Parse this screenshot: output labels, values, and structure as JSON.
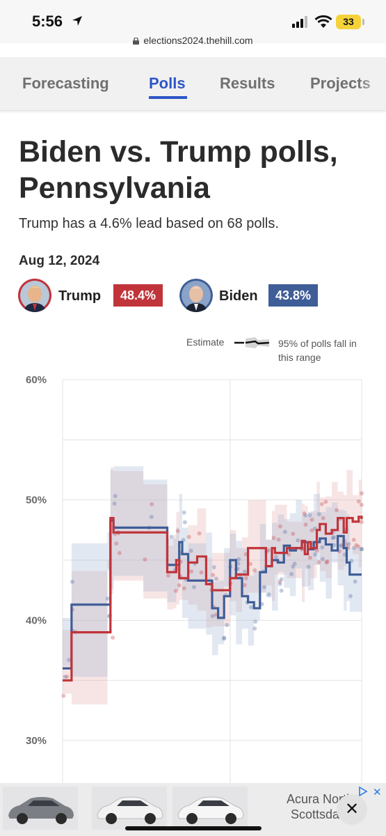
{
  "status_bar": {
    "time": "5:56",
    "battery": "33",
    "url": "elections2024.thehill.com",
    "icons": [
      "location-arrow-icon",
      "signal-icon",
      "wifi-icon",
      "battery-icon",
      "lock-icon"
    ]
  },
  "nav": {
    "tabs": [
      {
        "label": "Forecasting",
        "active": false
      },
      {
        "label": "Polls",
        "active": true
      },
      {
        "label": "Results",
        "active": false
      },
      {
        "label": "Projects",
        "active": false
      }
    ],
    "accent_color": "#2d55c7"
  },
  "page": {
    "title": "Biden vs. Trump polls, Pennsylvania",
    "subtitle": "Trump has a 4.6% lead based on 68 polls.",
    "date": "Aug 12, 2024"
  },
  "candidates": [
    {
      "name": "Trump",
      "value": "48.4%",
      "color": "#c0343a"
    },
    {
      "name": "Biden",
      "value": "43.8%",
      "color": "#3f5d96"
    }
  ],
  "legend": {
    "estimate": "Estimate",
    "range": "95% of polls fall in this range"
  },
  "chart_data": {
    "type": "line",
    "y_ticks": [
      "60%",
      "50%",
      "40%",
      "30%"
    ],
    "ylim": [
      30,
      60
    ],
    "x_label": "",
    "series": [
      {
        "name": "Trump",
        "color": "#c0343a",
        "x": [
          0,
          3,
          15,
          16,
          17,
          27,
          35,
          37,
          38,
          39,
          42,
          45,
          48,
          50,
          56,
          58,
          60,
          62,
          68,
          70,
          71,
          75,
          80,
          81,
          82,
          83,
          85,
          86,
          88,
          90,
          92,
          94,
          95,
          97,
          99,
          100
        ],
        "values": [
          35.0,
          39.0,
          39.0,
          48.5,
          47.3,
          47.3,
          44.0,
          44.0,
          45.0,
          43.5,
          44.8,
          45.3,
          43.0,
          42.5,
          43.5,
          43.8,
          43.8,
          46.0,
          44.5,
          46.0,
          45.6,
          46.0,
          46.6,
          45.5,
          46.5,
          46.0,
          47.5,
          48.0,
          47.2,
          47.5,
          48.5,
          47.3,
          48.5,
          48.2,
          48.6,
          48.4
        ]
      },
      {
        "name": "Biden",
        "color": "#3f5d96",
        "x": [
          0,
          3,
          15,
          16,
          17,
          27,
          35,
          38,
          39,
          40,
          42,
          48,
          50,
          52,
          54,
          56,
          58,
          60,
          62,
          64,
          66,
          68,
          70,
          72,
          74,
          76,
          78,
          80,
          82,
          84,
          86,
          88,
          90,
          92,
          94,
          95,
          96,
          100
        ],
        "values": [
          36.0,
          41.3,
          41.3,
          48.3,
          47.7,
          47.7,
          44.6,
          44.6,
          46.5,
          45.5,
          43.3,
          43.3,
          41.0,
          40.2,
          42.0,
          45.0,
          43.5,
          42.0,
          41.5,
          41.0,
          44.0,
          44.5,
          45.0,
          44.8,
          46.2,
          45.8,
          46.0,
          46.5,
          45.9,
          46.5,
          46.8,
          46.3,
          45.8,
          47.0,
          46.0,
          44.8,
          43.8,
          43.8
        ]
      }
    ]
  },
  "ad": {
    "text": "Acura North Scottsdale",
    "close_label": "✕"
  }
}
